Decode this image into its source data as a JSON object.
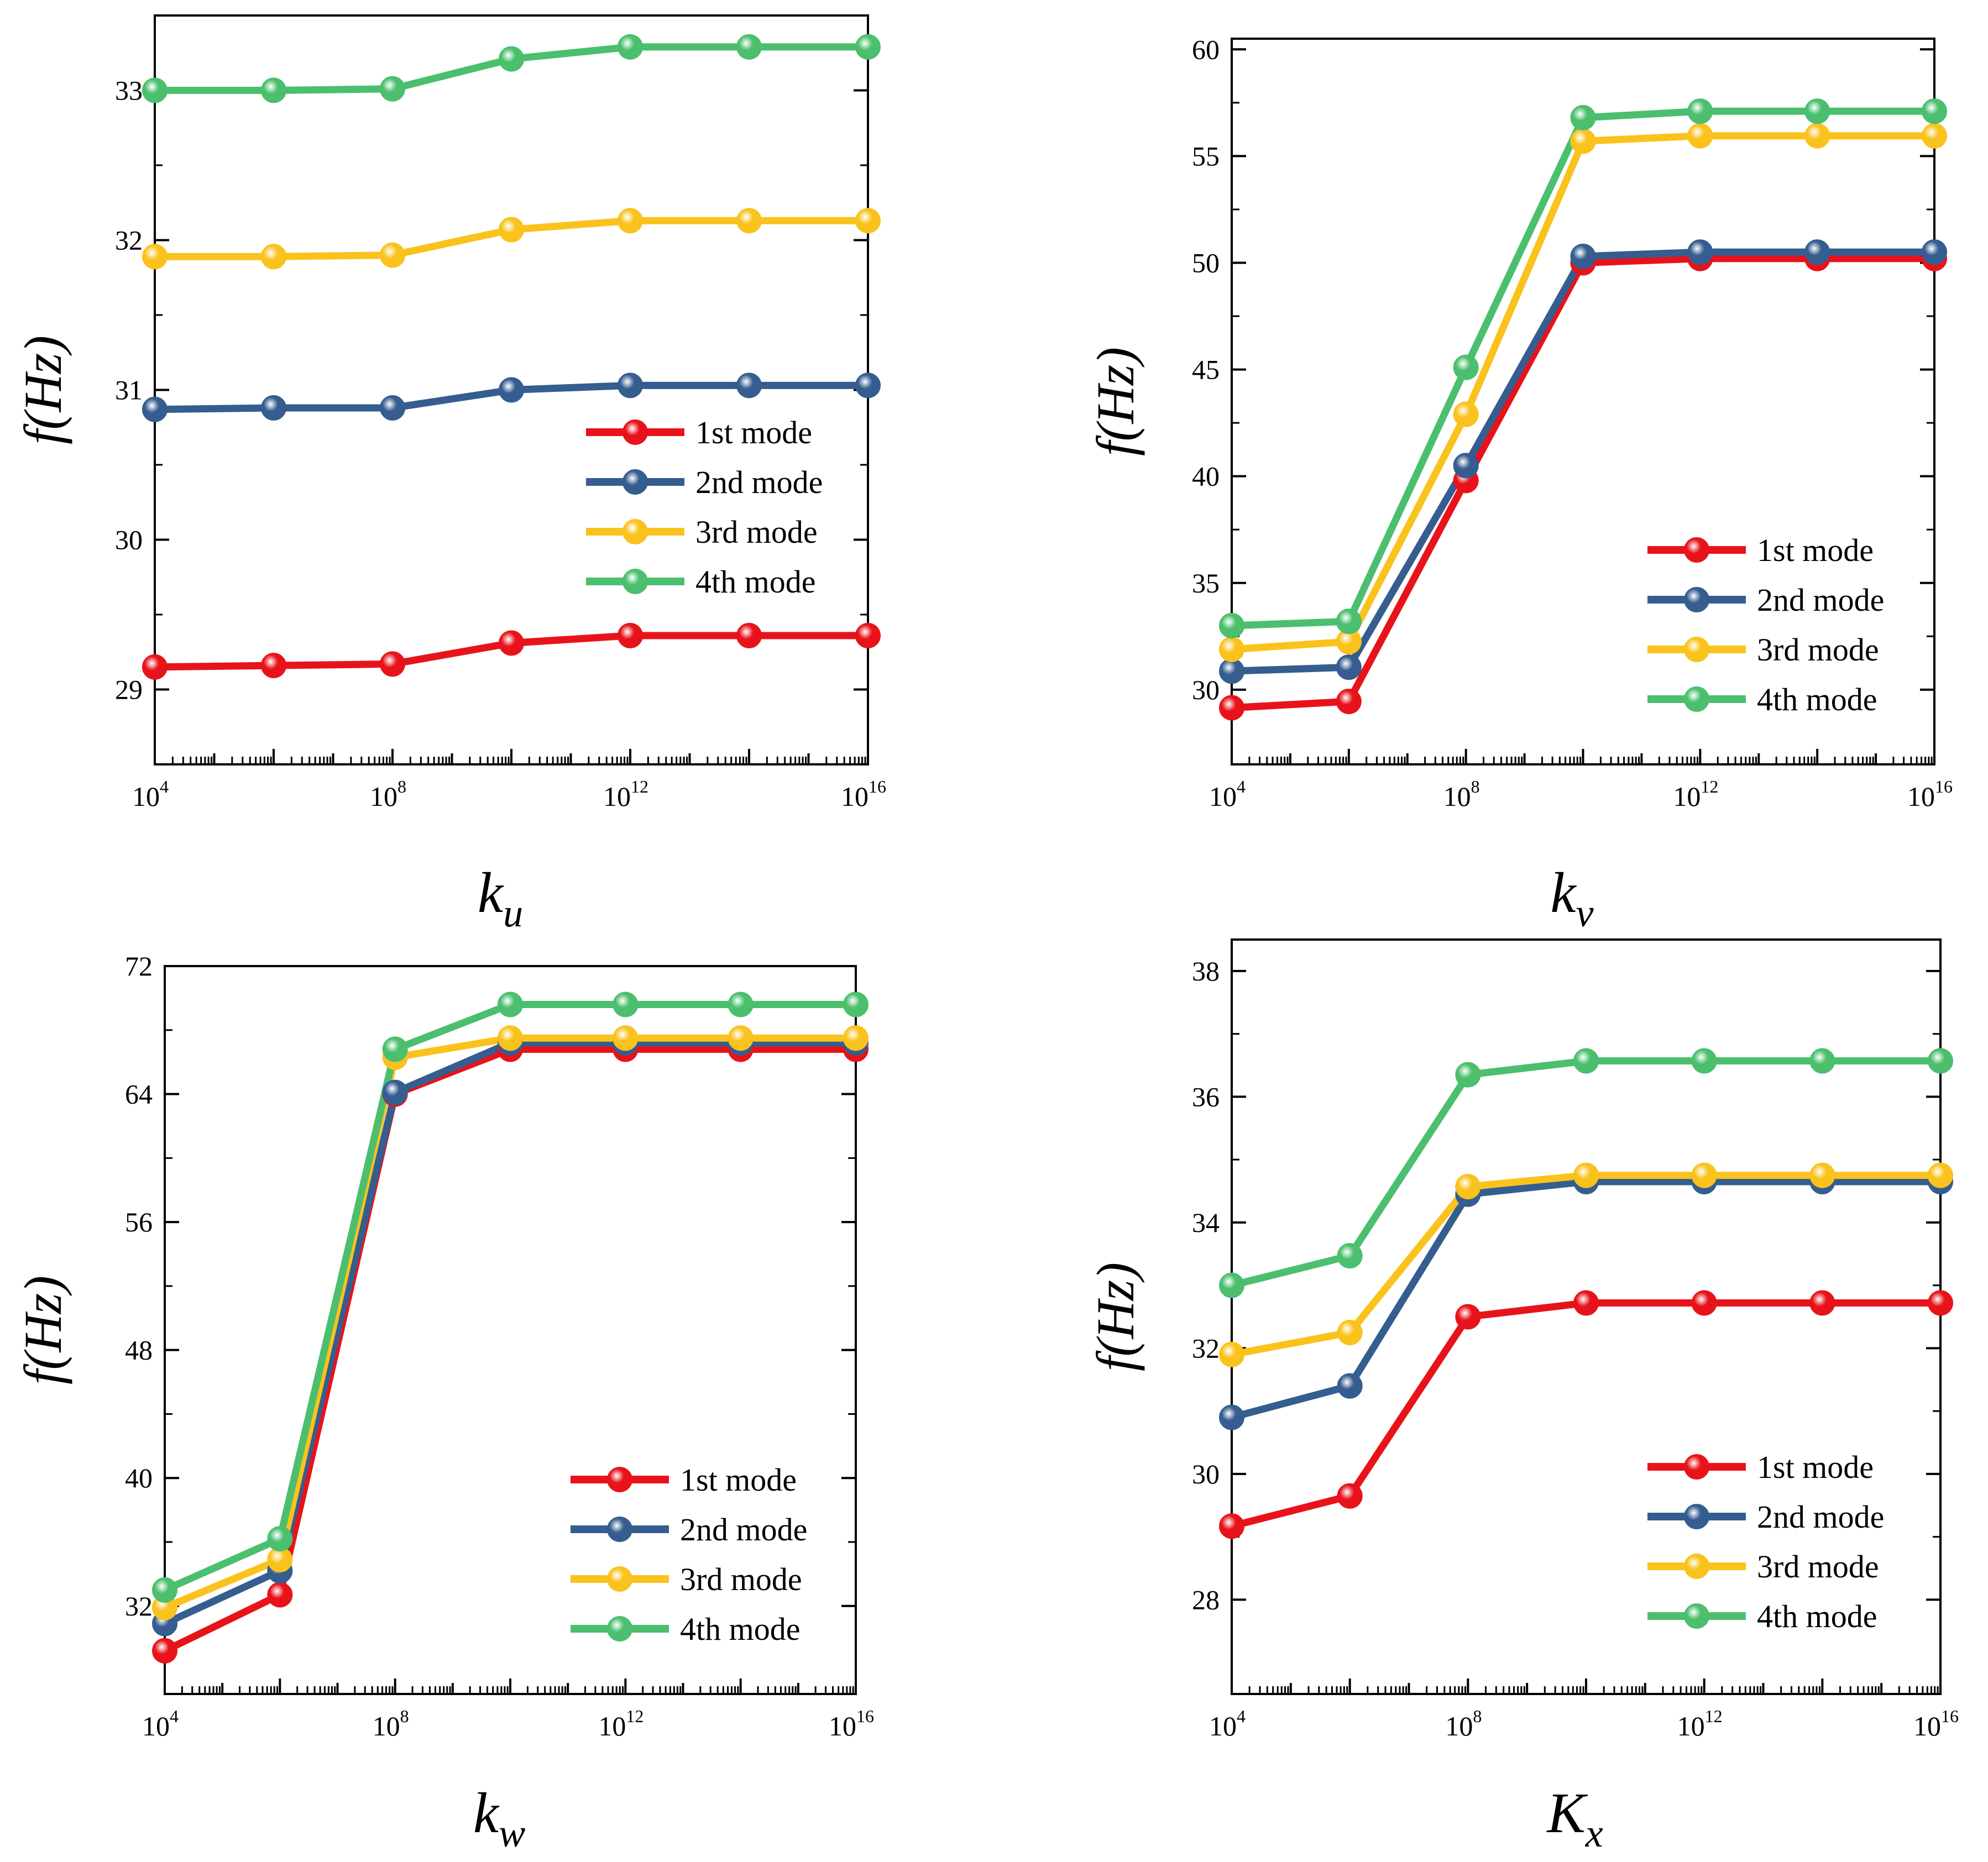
{
  "colors": {
    "mode1": "#e8131a",
    "mode2": "#355d8f",
    "mode3": "#fac21d",
    "mode4": "#4bbf6d"
  },
  "chart_data": [
    {
      "type": "line",
      "panel": "top-left",
      "x_exponents": [
        4,
        6,
        8,
        10,
        12,
        14,
        16
      ],
      "x_tick_exponents": [
        4,
        8,
        12,
        16
      ],
      "x_tick_base": "10",
      "xlabel": {
        "main": "k",
        "sub": "u"
      },
      "ylabel": "f(Hz)",
      "ylim": [
        28.5,
        33.5
      ],
      "y_ticks": [
        29,
        30,
        31,
        32,
        33
      ],
      "legend_position": "center-right",
      "series": [
        {
          "name": "1st mode",
          "values": [
            29.15,
            29.16,
            29.17,
            29.31,
            29.36,
            29.36,
            29.36
          ]
        },
        {
          "name": "2nd mode",
          "values": [
            30.87,
            30.88,
            30.88,
            31.0,
            31.03,
            31.03,
            31.03
          ]
        },
        {
          "name": "3rd mode",
          "values": [
            31.89,
            31.89,
            31.9,
            32.07,
            32.13,
            32.13,
            32.13
          ]
        },
        {
          "name": "4th mode",
          "values": [
            33.0,
            33.0,
            33.01,
            33.21,
            33.29,
            33.29,
            33.29
          ]
        }
      ]
    },
    {
      "type": "line",
      "panel": "top-right",
      "x_exponents": [
        4,
        6,
        8,
        10,
        12,
        14,
        16
      ],
      "x_tick_exponents": [
        4,
        8,
        12,
        16
      ],
      "x_tick_base": "10",
      "xlabel": {
        "main": "k",
        "sub": "v"
      },
      "ylabel": "f(Hz)",
      "ylim": [
        26.5,
        60.5
      ],
      "y_ticks": [
        30,
        35,
        40,
        45,
        50,
        55,
        60
      ],
      "legend_position": "lower-right",
      "series": [
        {
          "name": "1st mode",
          "values": [
            29.15,
            29.45,
            39.8,
            50.0,
            50.2,
            50.2,
            50.2
          ]
        },
        {
          "name": "2nd mode",
          "values": [
            30.87,
            31.05,
            40.5,
            50.3,
            50.5,
            50.5,
            50.5
          ]
        },
        {
          "name": "3rd mode",
          "values": [
            31.89,
            32.25,
            42.9,
            55.7,
            55.95,
            55.95,
            55.95
          ]
        },
        {
          "name": "4th mode",
          "values": [
            33.0,
            33.2,
            45.1,
            56.8,
            57.1,
            57.1,
            57.1
          ]
        }
      ]
    },
    {
      "type": "line",
      "panel": "bottom-left",
      "x_exponents": [
        4,
        6,
        8,
        10,
        12,
        14,
        16
      ],
      "x_tick_exponents": [
        4,
        8,
        12,
        16
      ],
      "x_tick_base": "10",
      "xlabel": {
        "main": "k",
        "sub": "w"
      },
      "ylabel": "f(Hz)",
      "ylim": [
        26.5,
        72.0
      ],
      "y_ticks": [
        32,
        40,
        48,
        56,
        64,
        72
      ],
      "legend_position": "lower-right",
      "series": [
        {
          "name": "1st mode",
          "values": [
            29.2,
            32.7,
            64.0,
            66.8,
            66.8,
            66.8,
            66.8
          ]
        },
        {
          "name": "2nd mode",
          "values": [
            30.9,
            34.2,
            64.1,
            67.2,
            67.2,
            67.2,
            67.2
          ]
        },
        {
          "name": "3rd mode",
          "values": [
            31.9,
            34.9,
            66.3,
            67.5,
            67.5,
            67.5,
            67.5
          ]
        },
        {
          "name": "4th mode",
          "values": [
            33.0,
            36.2,
            66.8,
            69.6,
            69.6,
            69.6,
            69.6
          ]
        }
      ]
    },
    {
      "type": "line",
      "panel": "bottom-right",
      "x_exponents": [
        4,
        6,
        8,
        10,
        12,
        14,
        16
      ],
      "x_tick_exponents": [
        4,
        8,
        12,
        16
      ],
      "x_tick_base": "10",
      "xlabel": {
        "main": "K",
        "sub": "x"
      },
      "ylabel": "f(Hz)",
      "ylim": [
        26.5,
        38.5
      ],
      "y_ticks": [
        28,
        30,
        32,
        34,
        36,
        38
      ],
      "legend_position": "lower-right",
      "series": [
        {
          "name": "1st mode",
          "values": [
            29.17,
            29.65,
            32.5,
            32.72,
            32.72,
            32.72,
            32.72
          ]
        },
        {
          "name": "2nd mode",
          "values": [
            30.9,
            31.4,
            34.45,
            34.65,
            34.65,
            34.65,
            34.65
          ]
        },
        {
          "name": "3rd mode",
          "values": [
            31.9,
            32.25,
            34.57,
            34.75,
            34.75,
            34.75,
            34.75
          ]
        },
        {
          "name": "4th mode",
          "values": [
            33.0,
            33.47,
            36.35,
            36.57,
            36.57,
            36.57,
            36.57
          ]
        }
      ]
    }
  ]
}
